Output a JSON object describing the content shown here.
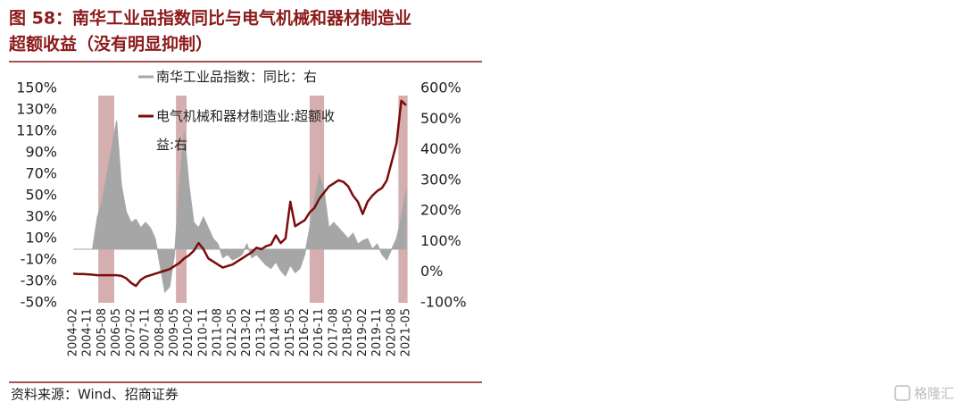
{
  "chart_data": {
    "type": "line",
    "title": [
      "图 58：南华工业品指数同比与电气机械和器材制造业",
      "超额收益（没有明显抑制）"
    ],
    "source": "资料来源：Wind、招商证券",
    "categories": [
      "2004-02",
      null,
      null,
      "2004-11",
      null,
      null,
      "2005-08",
      null,
      null,
      "2006-05",
      null,
      null,
      "2007-02",
      null,
      null,
      "2007-11",
      null,
      null,
      "2008-08",
      null,
      null,
      "2009-05",
      null,
      null,
      "2010-02",
      null,
      null,
      "2010-11",
      null,
      null,
      "2011-08",
      null,
      null,
      "2012-05",
      null,
      null,
      "2013-02",
      null,
      null,
      "2013-11",
      null,
      null,
      "2014-08",
      null,
      null,
      "2015-05",
      null,
      null,
      "2016-02",
      null,
      null,
      "2016-11",
      null,
      null,
      "2017-08",
      null,
      null,
      "2018-05",
      null,
      null,
      "2019-02",
      null,
      null,
      "2019-11",
      null,
      null,
      "2020-08",
      null,
      null,
      "2021-05"
    ],
    "series": [
      {
        "name": "南华工业品指数：同比：右",
        "color": "#a6a6a6",
        "style": "area",
        "axis": "y",
        "values": [
          0,
          0,
          0,
          0,
          0,
          30,
          45,
          70,
          95,
          120,
          60,
          35,
          25,
          28,
          20,
          25,
          20,
          10,
          -15,
          -40,
          -35,
          -5,
          60,
          110,
          60,
          25,
          20,
          30,
          20,
          10,
          5,
          -8,
          -5,
          -10,
          -8,
          -5,
          5,
          -8,
          -5,
          -10,
          -15,
          -18,
          -12,
          -20,
          -25,
          -15,
          -22,
          -18,
          -5,
          20,
          45,
          70,
          55,
          20,
          25,
          20,
          15,
          10,
          15,
          5,
          8,
          10,
          0,
          5,
          -5,
          -10,
          0,
          10,
          30,
          55
        ]
      },
      {
        "name": "电气机械和器材制造业:超额收益:右",
        "color": "#7b0c0c",
        "style": "line",
        "axis": "y2",
        "values": [
          -5,
          -6,
          -6,
          -7,
          -8,
          -10,
          -10,
          -10,
          -10,
          -10,
          -12,
          -20,
          -35,
          -45,
          -25,
          -15,
          -10,
          -5,
          0,
          5,
          10,
          20,
          30,
          45,
          55,
          70,
          95,
          75,
          45,
          35,
          25,
          15,
          20,
          25,
          35,
          45,
          55,
          65,
          80,
          75,
          85,
          90,
          120,
          95,
          110,
          230,
          150,
          160,
          170,
          195,
          210,
          240,
          260,
          280,
          290,
          300,
          295,
          280,
          250,
          230,
          190,
          230,
          250,
          265,
          275,
          300,
          360,
          420,
          560,
          545
        ]
      }
    ],
    "ylim": [
      -50,
      150
    ],
    "yticks": [
      {
        "value": -50,
        "label": "-50%"
      },
      {
        "value": -30,
        "label": "-30%"
      },
      {
        "value": -10,
        "label": "-10%"
      },
      {
        "value": 10,
        "label": "10%"
      },
      {
        "value": 30,
        "label": "30%"
      },
      {
        "value": 50,
        "label": "50%"
      },
      {
        "value": 70,
        "label": "70%"
      },
      {
        "value": 90,
        "label": "90%"
      },
      {
        "value": 110,
        "label": "110%"
      },
      {
        "value": 130,
        "label": "130%"
      },
      {
        "value": 150,
        "label": "150%"
      }
    ],
    "y2lim": [
      -100,
      600
    ],
    "y2ticks": [
      {
        "value": -100,
        "label": "-100%"
      },
      {
        "value": 0,
        "label": "0%"
      },
      {
        "value": 100,
        "label": "100%"
      },
      {
        "value": 200,
        "label": "200%"
      },
      {
        "value": 300,
        "label": "300%"
      },
      {
        "value": 400,
        "label": "400%"
      },
      {
        "value": 500,
        "label": "500%"
      },
      {
        "value": 600,
        "label": "600%"
      }
    ],
    "grid": false
  },
  "watermark": "格隆汇"
}
